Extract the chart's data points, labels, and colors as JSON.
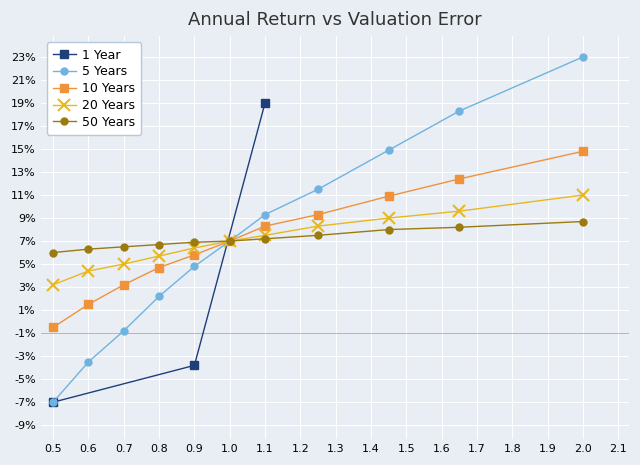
{
  "title": "Annual Return vs Valuation Error",
  "series": [
    {
      "label": "1 Year",
      "color": "#1F3F7A",
      "marker": "s",
      "markersize": 6,
      "linewidth": 1.0,
      "x": [
        0.5,
        0.9,
        1.1
      ],
      "y": [
        -0.07,
        -0.038,
        0.19
      ]
    },
    {
      "label": "5 Years",
      "color": "#6FB3E0",
      "marker": "o",
      "markersize": 5,
      "linewidth": 1.0,
      "x": [
        0.5,
        0.6,
        0.7,
        0.8,
        0.9,
        1.0,
        1.1,
        1.25,
        1.45,
        1.65,
        2.0
      ],
      "y": [
        -0.07,
        -0.035,
        -0.008,
        0.022,
        0.048,
        0.07,
        0.093,
        0.115,
        0.149,
        0.183,
        0.23
      ]
    },
    {
      "label": "10 Years",
      "color": "#F0923A",
      "marker": "s",
      "markersize": 6,
      "linewidth": 1.0,
      "x": [
        0.5,
        0.6,
        0.7,
        0.8,
        0.9,
        1.0,
        1.1,
        1.25,
        1.45,
        1.65,
        2.0
      ],
      "y": [
        -0.005,
        0.015,
        0.032,
        0.047,
        0.058,
        0.07,
        0.083,
        0.093,
        0.109,
        0.124,
        0.148
      ]
    },
    {
      "label": "20 Years",
      "color": "#E8B820",
      "marker": "x",
      "markersize": 8,
      "linewidth": 1.0,
      "x": [
        0.5,
        0.6,
        0.7,
        0.8,
        0.9,
        1.0,
        1.1,
        1.25,
        1.45,
        1.65,
        2.0
      ],
      "y": [
        0.032,
        0.044,
        0.05,
        0.057,
        0.064,
        0.07,
        0.075,
        0.083,
        0.09,
        0.096,
        0.11
      ]
    },
    {
      "label": "50 Years",
      "color": "#9B7A10",
      "marker": "o",
      "markersize": 5,
      "linewidth": 1.0,
      "x": [
        0.5,
        0.6,
        0.7,
        0.8,
        0.9,
        1.0,
        1.1,
        1.25,
        1.45,
        1.65,
        2.0
      ],
      "y": [
        0.06,
        0.063,
        0.065,
        0.067,
        0.069,
        0.07,
        0.072,
        0.075,
        0.08,
        0.082,
        0.087
      ]
    }
  ],
  "xlim": [
    0.465,
    2.13
  ],
  "ylim": [
    -0.102,
    0.248
  ],
  "xticks": [
    0.5,
    0.6,
    0.7,
    0.8,
    0.9,
    1.0,
    1.1,
    1.2,
    1.3,
    1.4,
    1.5,
    1.6,
    1.7,
    1.8,
    1.9,
    2.0,
    2.1
  ],
  "yticks": [
    -0.09,
    -0.07,
    -0.05,
    -0.03,
    -0.01,
    0.01,
    0.03,
    0.05,
    0.07,
    0.09,
    0.11,
    0.13,
    0.15,
    0.17,
    0.19,
    0.21,
    0.23
  ],
  "bg_color": "#E9EEF4",
  "grid_color": "#FFFFFF",
  "legend_pos": "upper left",
  "title_fontsize": 13,
  "tick_fontsize": 8,
  "legend_fontsize": 9
}
